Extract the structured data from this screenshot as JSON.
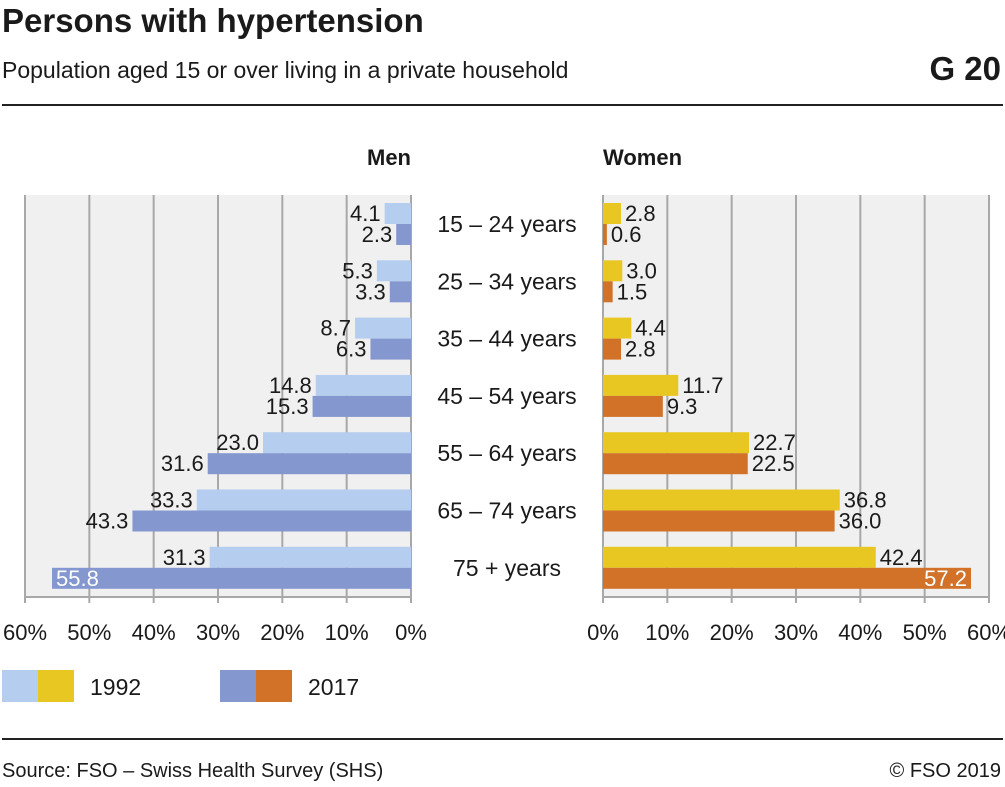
{
  "title": "Persons with hypertension",
  "subtitle": "Population aged 15 or over living in a private household",
  "graphic_number": "G 20",
  "source": "Source: FSO – Swiss Health Survey (SHS)",
  "copyright": "© FSO 2019",
  "colors": {
    "men_1992": "#b5cdee",
    "men_2017": "#8497cf",
    "women_1992": "#e8c722",
    "women_2017": "#d17228",
    "plot_bg": "#f0f0f0",
    "grid": "#a8a8a8"
  },
  "chart_data": {
    "type": "bar",
    "orientation": "horizontal-butterfly",
    "categories": [
      "15 – 24 years",
      "25 – 34 years",
      "35 – 44 years",
      "45 – 54 years",
      "55 – 64 years",
      "65 – 74 years",
      "75 + years"
    ],
    "panels": [
      {
        "title": "Men",
        "series": [
          {
            "name": "1992",
            "values": [
              4.1,
              5.3,
              8.7,
              14.8,
              23.0,
              33.3,
              31.3
            ]
          },
          {
            "name": "2017",
            "values": [
              2.3,
              3.3,
              6.3,
              15.3,
              31.6,
              43.3,
              55.8
            ]
          }
        ]
      },
      {
        "title": "Women",
        "series": [
          {
            "name": "1992",
            "values": [
              2.8,
              3.0,
              4.4,
              11.7,
              22.7,
              36.8,
              42.4
            ]
          },
          {
            "name": "2017",
            "values": [
              0.6,
              1.5,
              2.8,
              9.3,
              22.5,
              36.0,
              57.2
            ]
          }
        ]
      }
    ],
    "xlim": [
      0,
      60
    ],
    "xticks": [
      "0%",
      "10%",
      "20%",
      "30%",
      "40%",
      "50%",
      "60%"
    ],
    "legend": [
      "1992",
      "2017"
    ],
    "legend_position": "bottom-left",
    "grid": true
  }
}
